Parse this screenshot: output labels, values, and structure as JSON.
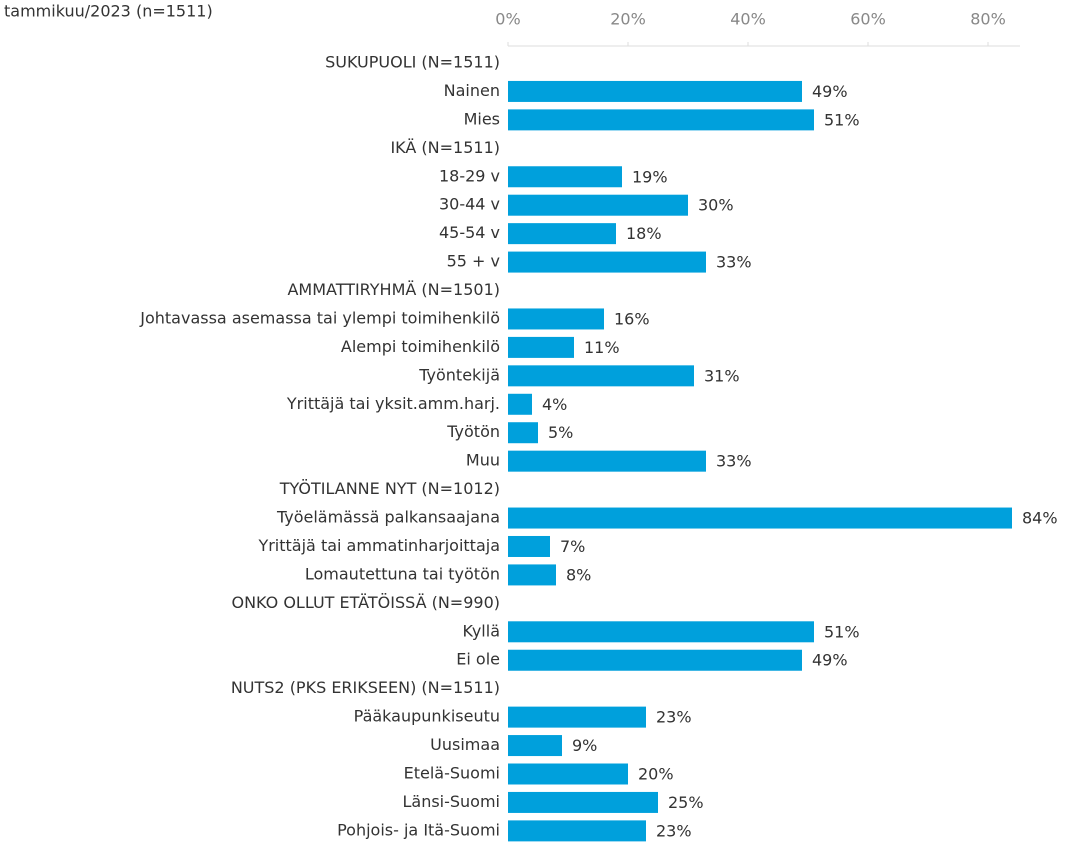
{
  "chart_data": {
    "type": "barh",
    "title": "tammikuu/2023 (n=1511)",
    "categories": [
      "SUKUPUOLI (N=1511)",
      "Nainen",
      "Mies",
      "IKÄ (N=1511)",
      "18-29 v",
      "30-44 v",
      "45-54 v",
      "55 + v",
      "AMMATTIRYHMÄ (N=1501)",
      "Johtavassa asemassa tai ylempi toimihenkilö",
      "Alempi toimihenkilö",
      "Työntekijä",
      "Yrittäjä tai yksit.amm.harj.",
      "Työtön",
      "Muu",
      "TYÖTILANNE NYT (N=1012)",
      "Työelämässä palkansaajana",
      "Yrittäjä tai ammatinharjoittaja",
      "Lomautettuna tai työtön",
      "ONKO OLLUT ETÄTÖISSÄ (N=990)",
      "Kyllä",
      "Ei ole",
      "NUTS2 (PKS ERIKSEEN) (N=1511)",
      "Pääkaupunkiseutu",
      "Uusimaa",
      "Etelä-Suomi",
      "Länsi-Suomi",
      "Pohjois- ja Itä-Suomi"
    ],
    "values": [
      null,
      49,
      51,
      null,
      19,
      30,
      18,
      33,
      null,
      16,
      11,
      31,
      4,
      5,
      33,
      null,
      84,
      7,
      8,
      null,
      51,
      49,
      null,
      23,
      9,
      20,
      25,
      23
    ],
    "value_labels": [
      null,
      "49%",
      "51%",
      null,
      "19%",
      "30%",
      "18%",
      "33%",
      null,
      "16%",
      "11%",
      "31%",
      "4%",
      "5%",
      "33%",
      null,
      "84%",
      "7%",
      "8%",
      null,
      "51%",
      "49%",
      null,
      "23%",
      "9%",
      "20%",
      "25%",
      "23%"
    ],
    "color": "#00a0dc",
    "xlim": [
      0,
      85
    ],
    "xticks": [
      {
        "value": 0,
        "label": "0%"
      },
      {
        "value": 20,
        "label": "20%"
      },
      {
        "value": 40,
        "label": "40%"
      },
      {
        "value": 60,
        "label": "60%"
      },
      {
        "value": 80,
        "label": "80%"
      }
    ]
  }
}
